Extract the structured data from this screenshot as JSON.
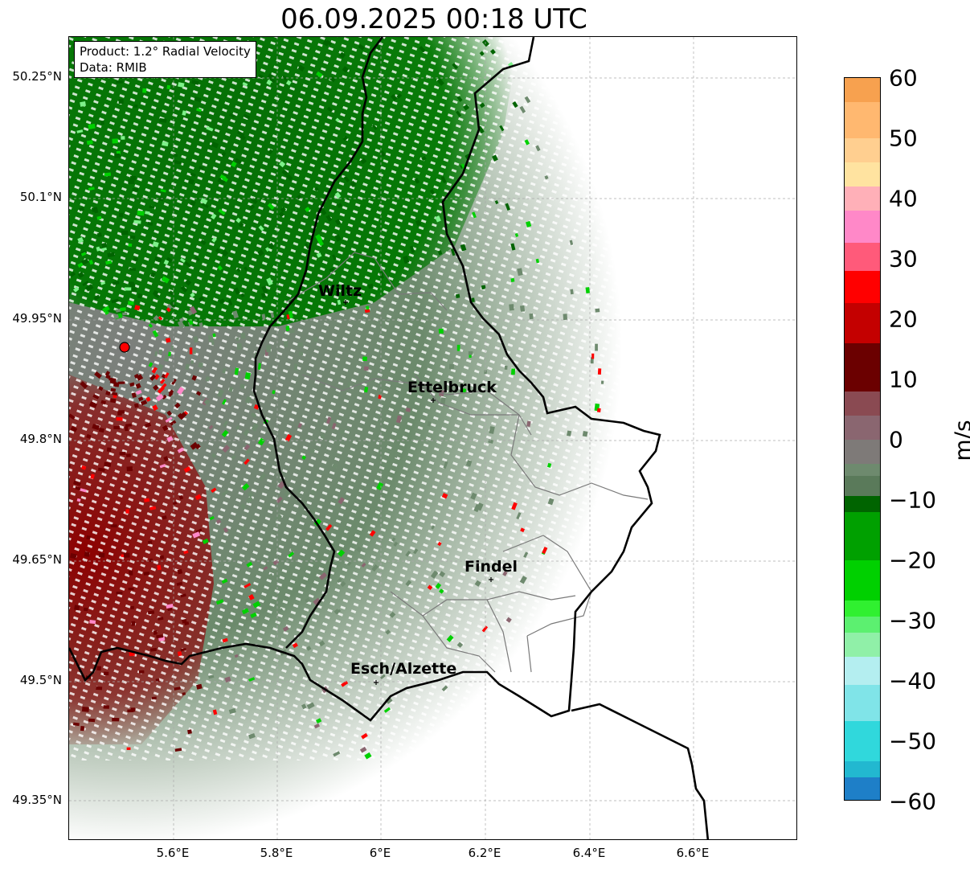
{
  "title": "06.09.2025 00:18 UTC",
  "infobox": {
    "product": "Product: 1.2° Radial Velocity",
    "data": "Data: RMIB"
  },
  "lat_ticks": [
    "50.25°N",
    "50.1°N",
    "49.95°N",
    "49.8°N",
    "49.65°N",
    "49.5°N",
    "49.35°N"
  ],
  "lon_ticks": [
    "5.6°E",
    "5.8°E",
    "6°E",
    "6.2°E",
    "6.4°E",
    "6.6°E"
  ],
  "cities": [
    {
      "name": "Wiltz"
    },
    {
      "name": "Ettelbruck"
    },
    {
      "name": "Findel"
    },
    {
      "name": "Esch/Alzette"
    }
  ],
  "colorbar": {
    "unit": "m/s",
    "ticks": [
      "60",
      "50",
      "40",
      "30",
      "20",
      "10",
      "0",
      "−10",
      "−20",
      "−30",
      "−40",
      "−50",
      "−60"
    ],
    "colors": {
      "orange": "#f7a14f",
      "peach": "#ffc98a",
      "pink": "#ff88c8",
      "red": "#ff0000",
      "dark_red": "#6b0000",
      "mauve": "#8a6670",
      "gray_green": "#6e8a6e",
      "dark_green": "#006400",
      "green": "#00d000",
      "light_green": "#7ef08a",
      "light_cyan": "#b4eef0",
      "cyan": "#30d8dc",
      "blue": "#1e7fc8"
    }
  }
}
